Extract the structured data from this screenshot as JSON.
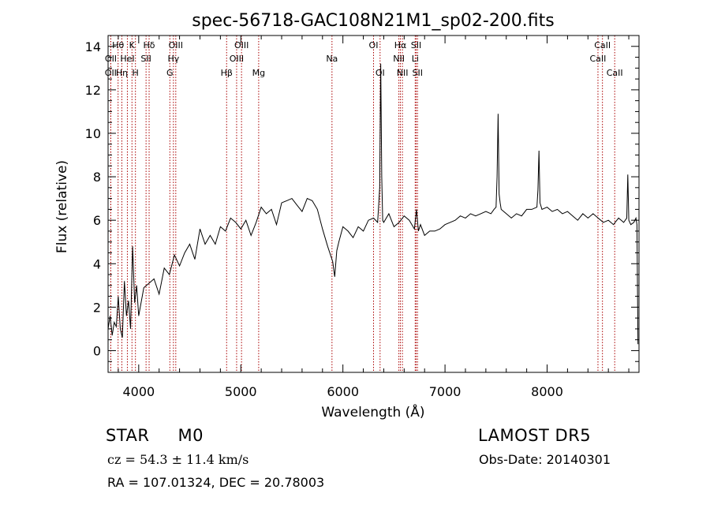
{
  "colors": {
    "background": "#ffffff",
    "spectrum": "#000000",
    "line_marker": "#aa0000"
  },
  "chart_data": {
    "type": "line",
    "title": "spec-56718-GAC108N21M1_sp02-200.fits",
    "xlabel": "Wavelength (Å)",
    "ylabel": "Flux (relative)",
    "xlim": [
      3700,
      8900
    ],
    "ylim": [
      -1,
      14.5
    ],
    "xticks": [
      4000,
      5000,
      6000,
      7000,
      8000
    ],
    "xtick_labels": [
      "4000",
      "5000",
      "6000",
      "7000",
      "8000"
    ],
    "yticks": [
      0,
      2,
      4,
      6,
      8,
      10,
      12,
      14
    ],
    "ytick_labels": [
      "0",
      "2",
      "4",
      "6",
      "8",
      "10",
      "12",
      "14"
    ],
    "grid": false,
    "series": [
      {
        "x": [
          3700,
          3720,
          3740,
          3760,
          3780,
          3800,
          3820,
          3840,
          3860,
          3880,
          3900,
          3920,
          3940,
          3960,
          3980,
          4000,
          4050,
          4100,
          4150,
          4200,
          4250,
          4300,
          4350,
          4400,
          4450,
          4500,
          4550,
          4600,
          4650,
          4700,
          4750,
          4800,
          4850,
          4900,
          4950,
          5000,
          5050,
          5100,
          5150,
          5200,
          5250,
          5300,
          5350,
          5400,
          5450,
          5500,
          5550,
          5600,
          5650,
          5700,
          5750,
          5800,
          5850,
          5900,
          5920,
          5940,
          5960,
          6000,
          6050,
          6100,
          6150,
          6200,
          6250,
          6300,
          6340,
          6360,
          6370,
          6380,
          6390,
          6400,
          6450,
          6500,
          6550,
          6600,
          6650,
          6700,
          6720,
          6740,
          6760,
          6800,
          6850,
          6900,
          6950,
          7000,
          7050,
          7100,
          7150,
          7200,
          7250,
          7300,
          7350,
          7400,
          7450,
          7480,
          7500,
          7510,
          7520,
          7530,
          7540,
          7550,
          7600,
          7650,
          7700,
          7750,
          7800,
          7850,
          7900,
          7910,
          7920,
          7930,
          7950,
          8000,
          8050,
          8100,
          8150,
          8200,
          8250,
          8300,
          8350,
          8400,
          8450,
          8500,
          8550,
          8600,
          8650,
          8700,
          8750,
          8780,
          8790,
          8800,
          8820,
          8850,
          8870,
          8880,
          8890
        ],
        "y": [
          1.0,
          1.6,
          0.7,
          1.3,
          1.1,
          2.5,
          1.0,
          0.6,
          3.2,
          1.6,
          2.3,
          1.0,
          4.8,
          2.2,
          3.0,
          1.6,
          2.9,
          3.1,
          3.3,
          2.6,
          3.8,
          3.5,
          4.4,
          3.9,
          4.5,
          4.9,
          4.2,
          5.6,
          4.9,
          5.3,
          4.9,
          5.7,
          5.5,
          6.1,
          5.9,
          5.6,
          6.0,
          5.3,
          5.9,
          6.6,
          6.3,
          6.5,
          5.8,
          6.8,
          6.9,
          7.0,
          6.7,
          6.4,
          7.0,
          6.9,
          6.5,
          5.6,
          4.8,
          4.1,
          3.4,
          4.6,
          5.0,
          5.7,
          5.5,
          5.2,
          5.7,
          5.5,
          6.0,
          6.1,
          5.9,
          7.5,
          13.2,
          8.0,
          6.0,
          5.9,
          6.3,
          5.7,
          5.9,
          6.2,
          6.0,
          5.6,
          6.5,
          5.5,
          5.8,
          5.3,
          5.5,
          5.5,
          5.6,
          5.8,
          5.9,
          6.0,
          6.2,
          6.1,
          6.3,
          6.2,
          6.3,
          6.4,
          6.3,
          6.5,
          6.6,
          8.0,
          10.9,
          7.2,
          6.8,
          6.5,
          6.3,
          6.1,
          6.3,
          6.2,
          6.5,
          6.5,
          6.6,
          7.4,
          9.2,
          6.8,
          6.5,
          6.6,
          6.4,
          6.5,
          6.3,
          6.4,
          6.2,
          6.0,
          6.3,
          6.1,
          6.3,
          6.1,
          5.9,
          6.0,
          5.8,
          6.1,
          5.9,
          6.1,
          8.1,
          6.0,
          5.8,
          5.9,
          6.1,
          5.8,
          0.3
        ]
      }
    ],
    "line_ids": [
      {
        "label": "Hθ",
        "x": 3798,
        "row": 1
      },
      {
        "label": "K",
        "x": 3934,
        "row": 1
      },
      {
        "label": "Hδ",
        "x": 4102,
        "row": 1
      },
      {
        "label": "OIII",
        "x": 4363,
        "row": 1
      },
      {
        "label": "OIII",
        "x": 5007,
        "row": 1
      },
      {
        "label": "OI",
        "x": 6300,
        "row": 1
      },
      {
        "label": "Hα",
        "x": 6563,
        "row": 1
      },
      {
        "label": "SII",
        "x": 6717,
        "row": 1
      },
      {
        "label": "CaII",
        "x": 8542,
        "row": 1
      },
      {
        "label": "OII",
        "x": 3727,
        "row": 2
      },
      {
        "label": "HeI",
        "x": 3889,
        "row": 2
      },
      {
        "label": "SII",
        "x": 4072,
        "row": 2
      },
      {
        "label": "Hγ",
        "x": 4340,
        "row": 2
      },
      {
        "label": "OIII",
        "x": 4959,
        "row": 2
      },
      {
        "label": "Na",
        "x": 5893,
        "row": 2
      },
      {
        "label": "NII",
        "x": 6548,
        "row": 2
      },
      {
        "label": "Li",
        "x": 6708,
        "row": 2
      },
      {
        "label": "CaII",
        "x": 8498,
        "row": 2
      },
      {
        "label": "OII",
        "x": 3726,
        "row": 3
      },
      {
        "label": "Hη",
        "x": 3835,
        "row": 3
      },
      {
        "label": "H",
        "x": 3968,
        "row": 3
      },
      {
        "label": "G",
        "x": 4305,
        "row": 3
      },
      {
        "label": "Hβ",
        "x": 4861,
        "row": 3
      },
      {
        "label": "Mg",
        "x": 5175,
        "row": 3
      },
      {
        "label": "OI",
        "x": 6364,
        "row": 3
      },
      {
        "label": "NII",
        "x": 6583,
        "row": 3
      },
      {
        "label": "SII",
        "x": 6731,
        "row": 3
      },
      {
        "label": "CaII",
        "x": 8662,
        "row": 3
      }
    ]
  },
  "info": {
    "class_label": "STAR",
    "subclass_label": "M0",
    "survey": "LAMOST DR5",
    "cz_text": "cz = 54.3 ± 11.4 km/s",
    "obs_date": "Obs-Date: 20140301",
    "coords": "RA = 107.01324, DEC =  20.78003"
  }
}
